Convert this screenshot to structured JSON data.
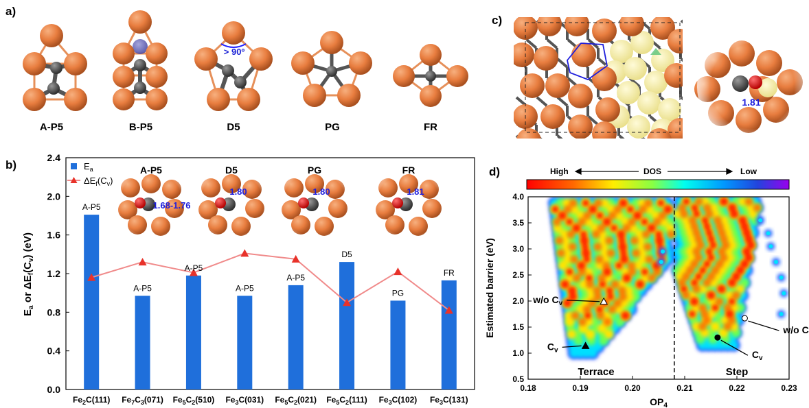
{
  "panels": {
    "a": "a)",
    "b": "b)",
    "c": "c)",
    "d": "d)"
  },
  "panel_a": {
    "clusters": [
      {
        "label": "A-P5",
        "annotation": ""
      },
      {
        "label": "B-P5",
        "annotation": ""
      },
      {
        "label": "D5",
        "annotation": "> 90º"
      },
      {
        "label": "PG",
        "annotation": ""
      },
      {
        "label": "FR",
        "annotation": ""
      }
    ]
  },
  "panel_c": {
    "bond_label": "1.81"
  },
  "chart_data": [
    {
      "type": "bar",
      "categories": [
        "Fe2C(111)",
        "Fe7C3(071)",
        "Fe5C2(510)",
        "Fe3C(031)",
        "Fe5C2(021)",
        "Fe5C2(111)",
        "Fe3C(102)",
        "Fe3C(131)"
      ],
      "category_labels": [
        {
          "base": "Fe",
          "s1": "2",
          "mid": "C",
          "s2": "",
          "facet": "(111)"
        },
        {
          "base": "Fe",
          "s1": "7",
          "mid": "C",
          "s2": "3",
          "facet": "(071)"
        },
        {
          "base": "Fe",
          "s1": "5",
          "mid": "C",
          "s2": "2",
          "facet": "(510)"
        },
        {
          "base": "Fe",
          "s1": "3",
          "mid": "C",
          "s2": "",
          "facet": "(031)"
        },
        {
          "base": "Fe",
          "s1": "5",
          "mid": "C",
          "s2": "2",
          "facet": "(021)"
        },
        {
          "base": "Fe",
          "s1": "5",
          "mid": "C",
          "s2": "2",
          "facet": "(111)"
        },
        {
          "base": "Fe",
          "s1": "3",
          "mid": "C",
          "s2": "",
          "facet": "(102)"
        },
        {
          "base": "Fe",
          "s1": "3",
          "mid": "C",
          "s2": "",
          "facet": "(131)"
        }
      ],
      "series": [
        {
          "name": "Ea",
          "kind": "bar",
          "color": "#1f6fdb",
          "values": [
            1.81,
            0.97,
            1.18,
            0.97,
            1.08,
            1.32,
            0.92,
            1.13
          ]
        },
        {
          "name": "ΔEf(Cv)",
          "kind": "line",
          "color": "#f08a8a",
          "marker_color": "#e8322a",
          "values": [
            1.16,
            1.32,
            1.21,
            1.41,
            1.35,
            0.9,
            1.22,
            0.82
          ]
        }
      ],
      "bar_labels": [
        "A-P5",
        "A-P5",
        "A-P5",
        "A-P5",
        "A-P5",
        "D5",
        "PG",
        "FR"
      ],
      "legend": [
        {
          "main": "E",
          "sub": "a",
          "tail": ""
        },
        {
          "main": "ΔE",
          "sub": "f",
          "tail": "(C",
          "sub2": "v",
          "end": ")"
        }
      ],
      "legend_position": "top-left",
      "ylabel": {
        "p1": "E",
        "s1": "a",
        "p2": " or ΔE",
        "s2": "f",
        "p3": "(C",
        "s3": "v",
        "p4": ") (eV)"
      },
      "ylim": [
        0.0,
        2.4
      ],
      "yticks": [
        "0.0",
        "0.4",
        "0.8",
        "1.2",
        "1.6",
        "2.0",
        "2.4"
      ],
      "insets": [
        {
          "title": "A-P5",
          "distance": "1.68-1.76"
        },
        {
          "title": "D5",
          "distance": "1.80"
        },
        {
          "title": "PG",
          "distance": "1.80"
        },
        {
          "title": "FR",
          "distance": "1.81"
        }
      ]
    },
    {
      "type": "heatmap",
      "xlabel": {
        "main": "OP",
        "sub": "4"
      },
      "ylabel": "Estimated barrier (eV)",
      "xlim": [
        0.18,
        0.23
      ],
      "ylim": [
        0.5,
        4.0
      ],
      "xticks": [
        "0.18",
        "0.19",
        "0.20",
        "0.21",
        "0.22",
        "0.23"
      ],
      "yticks": [
        "0.5",
        "1.0",
        "1.5",
        "2.0",
        "2.5",
        "3.0",
        "3.5",
        "4.0"
      ],
      "colorbar": {
        "left": "High",
        "center": "DOS",
        "right": "Low"
      },
      "divider_x": 0.208,
      "regions": [
        "Terrace",
        "Step"
      ],
      "annotations": [
        {
          "label": {
            "main": "w/o C",
            "sub": "v"
          },
          "x": 0.1945,
          "y": 1.99,
          "marker": "triangle-open"
        },
        {
          "label": {
            "main": "C",
            "sub": "v"
          },
          "x": 0.191,
          "y": 1.14,
          "marker": "triangle-filled"
        },
        {
          "label": {
            "main": "C",
            "sub": "v"
          },
          "x": 0.2163,
          "y": 1.3,
          "marker": "circle-filled"
        },
        {
          "label": {
            "main": "w/o C",
            "sub": "v"
          },
          "x": 0.2215,
          "y": 1.67,
          "marker": "circle-open"
        }
      ]
    }
  ]
}
